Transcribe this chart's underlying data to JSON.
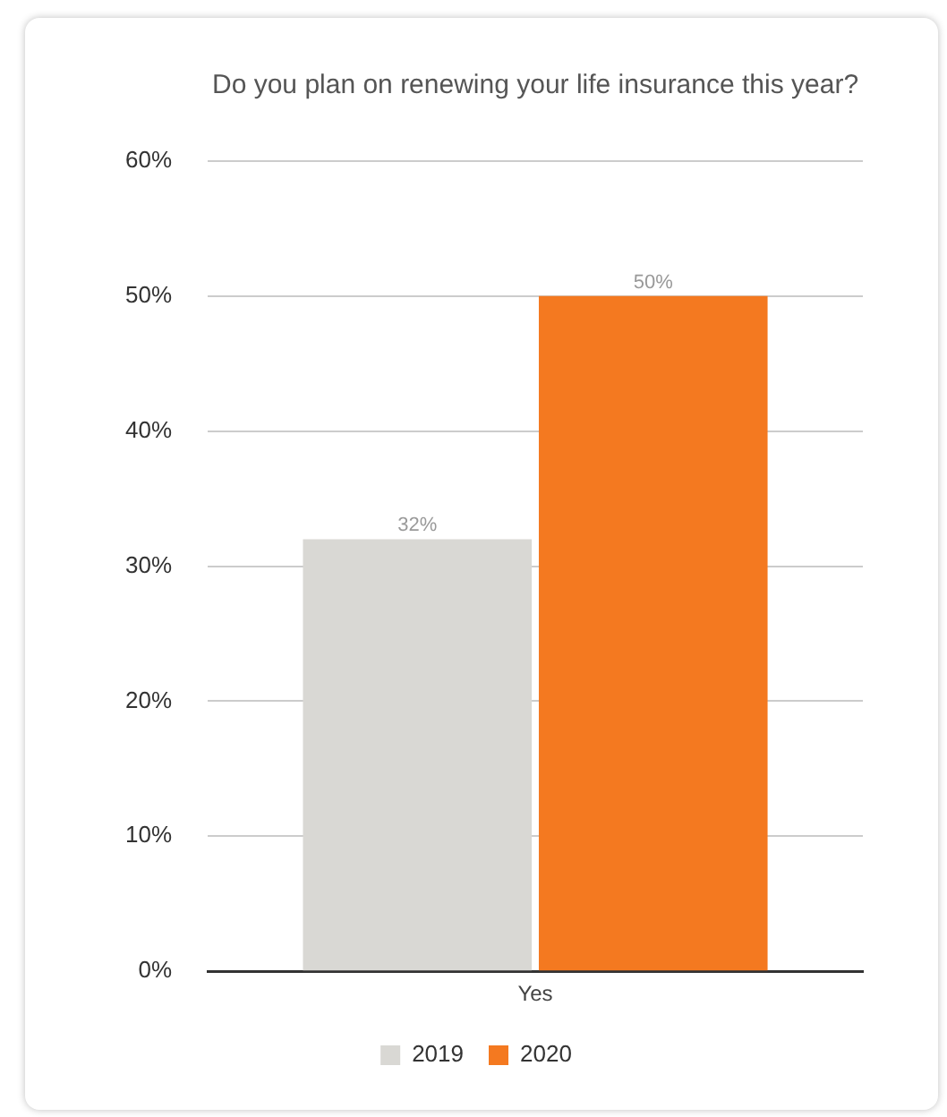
{
  "chart_data": {
    "type": "bar",
    "title": "Do you plan on renewing your life insurance this year?",
    "categories": [
      "Yes"
    ],
    "series": [
      {
        "name": "2019",
        "color": "#d9d8d4",
        "values": [
          32
        ],
        "value_labels": [
          "32%"
        ]
      },
      {
        "name": "2020",
        "color": "#f47920",
        "values": [
          50
        ],
        "value_labels": [
          "50%"
        ]
      }
    ],
    "ylim": [
      0,
      60
    ],
    "yticks": [
      {
        "value": 0,
        "label": "0%"
      },
      {
        "value": 10,
        "label": "10%"
      },
      {
        "value": 20,
        "label": "20%"
      },
      {
        "value": 30,
        "label": "30%"
      },
      {
        "value": 40,
        "label": "40%"
      },
      {
        "value": 50,
        "label": "50%"
      },
      {
        "value": 60,
        "label": "60%"
      }
    ],
    "grid": "y",
    "legend": "bottom"
  }
}
